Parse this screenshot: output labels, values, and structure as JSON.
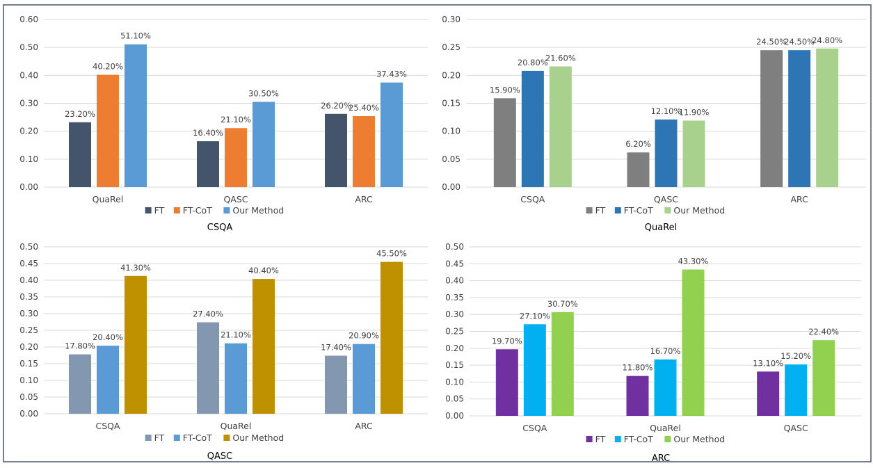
{
  "chart_data": [
    {
      "type": "bar",
      "title": "CSQA",
      "categories": [
        "QuaRel",
        "QASC",
        "ARC"
      ],
      "ylim": [
        0,
        0.6
      ],
      "yticks": [
        "0.00",
        "0.10",
        "0.20",
        "0.30",
        "0.40",
        "0.50",
        "0.60"
      ],
      "grid": true,
      "legend": "bottom",
      "series": [
        {
          "name": "FT",
          "color": "#44546A",
          "values": [
            0.232,
            0.164,
            0.262
          ],
          "labels": [
            "23.20%",
            "16.40%",
            "26.20%"
          ]
        },
        {
          "name": "FT-CoT",
          "color": "#ED7D31",
          "values": [
            0.402,
            0.211,
            0.254
          ],
          "labels": [
            "40.20%",
            "21.10%",
            "25.40%"
          ]
        },
        {
          "name": "Our Method",
          "color": "#5B9BD5",
          "values": [
            0.511,
            0.305,
            0.3743
          ],
          "labels": [
            "51.10%",
            "30.50%",
            "37.43%"
          ]
        }
      ]
    },
    {
      "type": "bar",
      "title": "QuaRel",
      "categories": [
        "CSQA",
        "QASC",
        "ARC"
      ],
      "ylim": [
        0,
        0.3
      ],
      "yticks": [
        "0.00",
        "0.05",
        "0.10",
        "0.15",
        "0.20",
        "0.25",
        "0.30"
      ],
      "grid": true,
      "legend": "bottom",
      "series": [
        {
          "name": "FT",
          "color": "#7F7F7F",
          "values": [
            0.159,
            0.062,
            0.245
          ],
          "labels": [
            "15.90%",
            "6.20%",
            "24.50%"
          ]
        },
        {
          "name": "FT-CoT",
          "color": "#2E75B6",
          "values": [
            0.208,
            0.121,
            0.245
          ],
          "labels": [
            "20.80%",
            "12.10%",
            "24.50%"
          ]
        },
        {
          "name": "Our Method",
          "color": "#A9D18E",
          "values": [
            0.216,
            0.119,
            0.248
          ],
          "labels": [
            "21.60%",
            "11.90%",
            "24.80%"
          ]
        }
      ]
    },
    {
      "type": "bar",
      "title": "QASC",
      "categories": [
        "CSQA",
        "QuaRel",
        "ARC"
      ],
      "ylim": [
        0,
        0.5
      ],
      "yticks": [
        "0.00",
        "0.05",
        "0.10",
        "0.15",
        "0.20",
        "0.25",
        "0.30",
        "0.35",
        "0.40",
        "0.45",
        "0.50"
      ],
      "grid": true,
      "legend": "bottom",
      "series": [
        {
          "name": "FT",
          "color": "#8497B0",
          "values": [
            0.178,
            0.274,
            0.174
          ],
          "labels": [
            "17.80%",
            "27.40%",
            "17.40%"
          ]
        },
        {
          "name": "FT-CoT",
          "color": "#5B9BD5",
          "values": [
            0.204,
            0.211,
            0.209
          ],
          "labels": [
            "20.40%",
            "21.10%",
            "20.90%"
          ]
        },
        {
          "name": "Our Method",
          "color": "#BF9000",
          "values": [
            0.413,
            0.404,
            0.455
          ],
          "labels": [
            "41.30%",
            "40.40%",
            "45.50%"
          ]
        }
      ]
    },
    {
      "type": "bar",
      "title": "ARC",
      "categories": [
        "CSQA",
        "QuaRel",
        "QASC"
      ],
      "ylim": [
        0,
        0.5
      ],
      "yticks": [
        "0.00",
        "0.05",
        "0.10",
        "0.15",
        "0.20",
        "0.25",
        "0.30",
        "0.35",
        "0.40",
        "0.45",
        "0.50"
      ],
      "grid": true,
      "legend": "bottom",
      "series": [
        {
          "name": "FT",
          "color": "#7030A0",
          "values": [
            0.197,
            0.118,
            0.131
          ],
          "labels": [
            "19.70%",
            "11.80%",
            "13.10%"
          ]
        },
        {
          "name": "FT-CoT",
          "color": "#00B0F0",
          "values": [
            0.271,
            0.167,
            0.152
          ],
          "labels": [
            "27.10%",
            "16.70%",
            "15.20%"
          ]
        },
        {
          "name": "Our Method",
          "color": "#92D050",
          "values": [
            0.307,
            0.433,
            0.224
          ],
          "labels": [
            "30.70%",
            "43.30%",
            "22.40%"
          ]
        }
      ]
    }
  ]
}
